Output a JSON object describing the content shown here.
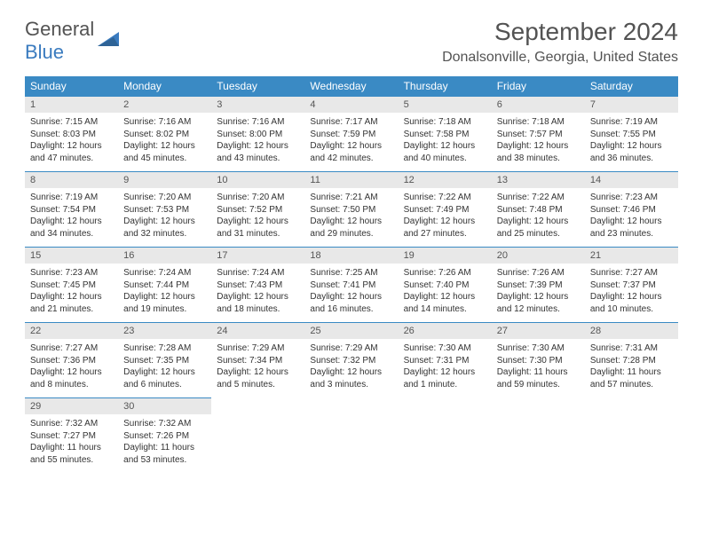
{
  "logo": {
    "part1": "General",
    "part2": "Blue"
  },
  "header": {
    "month_title": "September 2024",
    "location": "Donalsonville, Georgia, United States"
  },
  "colors": {
    "header_bg": "#3a8ac4",
    "header_text": "#ffffff",
    "daynum_bg": "#e8e8e8",
    "daynum_text": "#555555",
    "body_text": "#333333",
    "accent": "#3a7bbf",
    "logo_gray": "#535353"
  },
  "weekdays": [
    "Sunday",
    "Monday",
    "Tuesday",
    "Wednesday",
    "Thursday",
    "Friday",
    "Saturday"
  ],
  "weeks": [
    [
      {
        "num": "1",
        "sunrise": "Sunrise: 7:15 AM",
        "sunset": "Sunset: 8:03 PM",
        "daylight": "Daylight: 12 hours and 47 minutes."
      },
      {
        "num": "2",
        "sunrise": "Sunrise: 7:16 AM",
        "sunset": "Sunset: 8:02 PM",
        "daylight": "Daylight: 12 hours and 45 minutes."
      },
      {
        "num": "3",
        "sunrise": "Sunrise: 7:16 AM",
        "sunset": "Sunset: 8:00 PM",
        "daylight": "Daylight: 12 hours and 43 minutes."
      },
      {
        "num": "4",
        "sunrise": "Sunrise: 7:17 AM",
        "sunset": "Sunset: 7:59 PM",
        "daylight": "Daylight: 12 hours and 42 minutes."
      },
      {
        "num": "5",
        "sunrise": "Sunrise: 7:18 AM",
        "sunset": "Sunset: 7:58 PM",
        "daylight": "Daylight: 12 hours and 40 minutes."
      },
      {
        "num": "6",
        "sunrise": "Sunrise: 7:18 AM",
        "sunset": "Sunset: 7:57 PM",
        "daylight": "Daylight: 12 hours and 38 minutes."
      },
      {
        "num": "7",
        "sunrise": "Sunrise: 7:19 AM",
        "sunset": "Sunset: 7:55 PM",
        "daylight": "Daylight: 12 hours and 36 minutes."
      }
    ],
    [
      {
        "num": "8",
        "sunrise": "Sunrise: 7:19 AM",
        "sunset": "Sunset: 7:54 PM",
        "daylight": "Daylight: 12 hours and 34 minutes."
      },
      {
        "num": "9",
        "sunrise": "Sunrise: 7:20 AM",
        "sunset": "Sunset: 7:53 PM",
        "daylight": "Daylight: 12 hours and 32 minutes."
      },
      {
        "num": "10",
        "sunrise": "Sunrise: 7:20 AM",
        "sunset": "Sunset: 7:52 PM",
        "daylight": "Daylight: 12 hours and 31 minutes."
      },
      {
        "num": "11",
        "sunrise": "Sunrise: 7:21 AM",
        "sunset": "Sunset: 7:50 PM",
        "daylight": "Daylight: 12 hours and 29 minutes."
      },
      {
        "num": "12",
        "sunrise": "Sunrise: 7:22 AM",
        "sunset": "Sunset: 7:49 PM",
        "daylight": "Daylight: 12 hours and 27 minutes."
      },
      {
        "num": "13",
        "sunrise": "Sunrise: 7:22 AM",
        "sunset": "Sunset: 7:48 PM",
        "daylight": "Daylight: 12 hours and 25 minutes."
      },
      {
        "num": "14",
        "sunrise": "Sunrise: 7:23 AM",
        "sunset": "Sunset: 7:46 PM",
        "daylight": "Daylight: 12 hours and 23 minutes."
      }
    ],
    [
      {
        "num": "15",
        "sunrise": "Sunrise: 7:23 AM",
        "sunset": "Sunset: 7:45 PM",
        "daylight": "Daylight: 12 hours and 21 minutes."
      },
      {
        "num": "16",
        "sunrise": "Sunrise: 7:24 AM",
        "sunset": "Sunset: 7:44 PM",
        "daylight": "Daylight: 12 hours and 19 minutes."
      },
      {
        "num": "17",
        "sunrise": "Sunrise: 7:24 AM",
        "sunset": "Sunset: 7:43 PM",
        "daylight": "Daylight: 12 hours and 18 minutes."
      },
      {
        "num": "18",
        "sunrise": "Sunrise: 7:25 AM",
        "sunset": "Sunset: 7:41 PM",
        "daylight": "Daylight: 12 hours and 16 minutes."
      },
      {
        "num": "19",
        "sunrise": "Sunrise: 7:26 AM",
        "sunset": "Sunset: 7:40 PM",
        "daylight": "Daylight: 12 hours and 14 minutes."
      },
      {
        "num": "20",
        "sunrise": "Sunrise: 7:26 AM",
        "sunset": "Sunset: 7:39 PM",
        "daylight": "Daylight: 12 hours and 12 minutes."
      },
      {
        "num": "21",
        "sunrise": "Sunrise: 7:27 AM",
        "sunset": "Sunset: 7:37 PM",
        "daylight": "Daylight: 12 hours and 10 minutes."
      }
    ],
    [
      {
        "num": "22",
        "sunrise": "Sunrise: 7:27 AM",
        "sunset": "Sunset: 7:36 PM",
        "daylight": "Daylight: 12 hours and 8 minutes."
      },
      {
        "num": "23",
        "sunrise": "Sunrise: 7:28 AM",
        "sunset": "Sunset: 7:35 PM",
        "daylight": "Daylight: 12 hours and 6 minutes."
      },
      {
        "num": "24",
        "sunrise": "Sunrise: 7:29 AM",
        "sunset": "Sunset: 7:34 PM",
        "daylight": "Daylight: 12 hours and 5 minutes."
      },
      {
        "num": "25",
        "sunrise": "Sunrise: 7:29 AM",
        "sunset": "Sunset: 7:32 PM",
        "daylight": "Daylight: 12 hours and 3 minutes."
      },
      {
        "num": "26",
        "sunrise": "Sunrise: 7:30 AM",
        "sunset": "Sunset: 7:31 PM",
        "daylight": "Daylight: 12 hours and 1 minute."
      },
      {
        "num": "27",
        "sunrise": "Sunrise: 7:30 AM",
        "sunset": "Sunset: 7:30 PM",
        "daylight": "Daylight: 11 hours and 59 minutes."
      },
      {
        "num": "28",
        "sunrise": "Sunrise: 7:31 AM",
        "sunset": "Sunset: 7:28 PM",
        "daylight": "Daylight: 11 hours and 57 minutes."
      }
    ],
    [
      {
        "num": "29",
        "sunrise": "Sunrise: 7:32 AM",
        "sunset": "Sunset: 7:27 PM",
        "daylight": "Daylight: 11 hours and 55 minutes."
      },
      {
        "num": "30",
        "sunrise": "Sunrise: 7:32 AM",
        "sunset": "Sunset: 7:26 PM",
        "daylight": "Daylight: 11 hours and 53 minutes."
      },
      null,
      null,
      null,
      null,
      null
    ]
  ]
}
